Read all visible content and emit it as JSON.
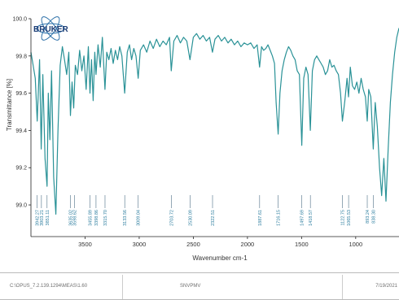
{
  "chart_data": {
    "type": "line",
    "title": "",
    "brand": "BRUKER",
    "xlabel": "Wavenumber cm-1",
    "ylabel": "Transmittance [%]",
    "xlim": [
      4000,
      600
    ],
    "ylim": [
      98.83,
      100.0
    ],
    "x_ticks": [
      3500,
      3000,
      2500,
      2000,
      1500,
      1000
    ],
    "y_ticks": [
      99.0,
      99.2,
      99.4,
      99.6,
      99.8,
      100.0
    ],
    "x_tick_labels": [
      "3500",
      "3000",
      "2500",
      "2000",
      "1500",
      "1000"
    ],
    "y_tick_labels": [
      "99.0",
      "99.2",
      "99.4",
      "99.6",
      "99.8",
      "100.0"
    ],
    "grid": false,
    "line_color": "#2a9297",
    "series": [
      {
        "x": [
          4000,
          3980,
          3960,
          3942,
          3920,
          3905,
          3890,
          3870,
          3851,
          3840,
          3825,
          3810,
          3790,
          3770,
          3750,
          3730,
          3710,
          3690,
          3670,
          3650,
          3635,
          3620,
          3605,
          3590,
          3570,
          3550,
          3530,
          3510,
          3490,
          3470,
          3455,
          3440,
          3425,
          3410,
          3399,
          3380,
          3360,
          3340,
          3316,
          3300,
          3280,
          3260,
          3240,
          3220,
          3200,
          3180,
          3160,
          3134,
          3110,
          3090,
          3070,
          3050,
          3030,
          3009,
          2990,
          2960,
          2930,
          2900,
          2870,
          2840,
          2810,
          2780,
          2750,
          2720,
          2704,
          2680,
          2650,
          2620,
          2590,
          2560,
          2531,
          2500,
          2470,
          2440,
          2410,
          2380,
          2350,
          2323,
          2300,
          2270,
          2240,
          2210,
          2180,
          2150,
          2120,
          2090,
          2060,
          2030,
          2000,
          1970,
          1940,
          1910,
          1888,
          1870,
          1850,
          1830,
          1810,
          1790,
          1770,
          1750,
          1735,
          1716,
          1700,
          1680,
          1660,
          1640,
          1620,
          1600,
          1580,
          1560,
          1540,
          1520,
          1498,
          1480,
          1460,
          1440,
          1419,
          1400,
          1380,
          1360,
          1340,
          1320,
          1300,
          1280,
          1260,
          1240,
          1220,
          1200,
          1180,
          1160,
          1140,
          1123,
          1100,
          1080,
          1066,
          1050,
          1030,
          1010,
          990,
          970,
          950,
          930,
          910,
          893,
          880,
          860,
          838,
          820,
          800,
          780,
          760,
          740,
          720,
          700,
          680,
          660,
          640,
          620,
          600
        ],
        "y": [
          99.82,
          99.75,
          99.68,
          99.45,
          99.78,
          99.3,
          99.7,
          99.25,
          99.1,
          99.6,
          99.35,
          99.72,
          99.15,
          98.95,
          99.4,
          99.75,
          99.85,
          99.78,
          99.7,
          99.82,
          99.48,
          99.66,
          99.52,
          99.75,
          99.7,
          99.83,
          99.72,
          99.8,
          99.62,
          99.85,
          99.6,
          99.78,
          99.56,
          99.82,
          99.7,
          99.86,
          99.74,
          99.9,
          99.62,
          99.82,
          99.78,
          99.84,
          99.76,
          99.83,
          99.78,
          99.85,
          99.8,
          99.6,
          99.82,
          99.86,
          99.78,
          99.84,
          99.8,
          99.68,
          99.83,
          99.86,
          99.82,
          99.88,
          99.84,
          99.89,
          99.85,
          99.88,
          99.86,
          99.9,
          99.72,
          99.88,
          99.91,
          99.87,
          99.9,
          99.88,
          99.78,
          99.9,
          99.92,
          99.89,
          99.91,
          99.88,
          99.9,
          99.82,
          99.89,
          99.91,
          99.88,
          99.9,
          99.87,
          99.89,
          99.86,
          99.88,
          99.85,
          99.87,
          99.86,
          99.87,
          99.84,
          99.86,
          99.74,
          99.85,
          99.83,
          99.84,
          99.86,
          99.83,
          99.8,
          99.76,
          99.55,
          99.38,
          99.6,
          99.72,
          99.78,
          99.82,
          99.85,
          99.83,
          99.8,
          99.78,
          99.72,
          99.7,
          99.32,
          99.68,
          99.74,
          99.7,
          99.4,
          99.72,
          99.78,
          99.8,
          99.78,
          99.76,
          99.74,
          99.7,
          99.72,
          99.78,
          99.74,
          99.75,
          99.72,
          99.7,
          99.6,
          99.45,
          99.56,
          99.68,
          99.58,
          99.74,
          99.64,
          99.62,
          99.66,
          99.6,
          99.68,
          99.62,
          99.58,
          99.45,
          99.62,
          99.58,
          99.3,
          99.55,
          99.42,
          99.2,
          99.05,
          99.25,
          99.02,
          99.3,
          99.55,
          99.7,
          99.82,
          99.9,
          99.95
        ]
      }
    ],
    "peak_labels": [
      "3942.27",
      "3903.21",
      "3851.11",
      "3635.02",
      "3598.62",
      "3455.89",
      "3398.86",
      "3315.70",
      "3133.56",
      "3009.04",
      "2703.72",
      "2530.09",
      "2322.51",
      "1887.61",
      "1716.15",
      "1497.69",
      "1418.57",
      "1122.75",
      "1065.53",
      "893.24",
      "838.30"
    ],
    "peak_x": [
      3942.27,
      3903.21,
      3851.11,
      3635.02,
      3598.62,
      3455.89,
      3398.86,
      3315.7,
      3133.56,
      3009.04,
      2703.72,
      2530.09,
      2322.51,
      1887.61,
      1716.15,
      1497.69,
      1418.57,
      1122.75,
      1065.53,
      893.24,
      838.3
    ]
  },
  "footer": {
    "path": "C:\\OPUS_7.2.139.1294\\MEAS\\1.60",
    "sample": "SNVPMV",
    "date": "7/19/2021"
  }
}
